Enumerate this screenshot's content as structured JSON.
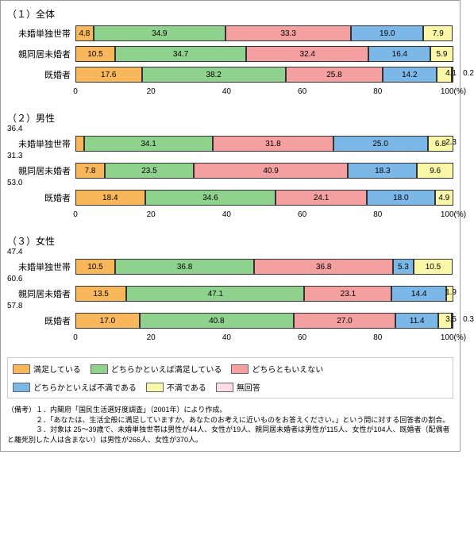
{
  "colors": {
    "c0": "#f9b75b",
    "c1": "#8ed28e",
    "c2": "#f4a0a0",
    "c3": "#7bb8e8",
    "c4": "#fbf7a8",
    "c5": "#fcdde8",
    "text": "#333333",
    "border": "#333333"
  },
  "legend": [
    {
      "label": "満足している",
      "c": "c0"
    },
    {
      "label": "どちらかといえば満足している",
      "c": "c1"
    },
    {
      "label": "どちらともいえない",
      "c": "c2"
    },
    {
      "label": "どちらかといえば不満である",
      "c": "c3"
    },
    {
      "label": "不満である",
      "c": "c4"
    },
    {
      "label": "無回答",
      "c": "c5"
    }
  ],
  "axis": {
    "ticks": [
      0,
      20,
      40,
      60,
      80,
      100
    ],
    "unit": "100(%)"
  },
  "panels": [
    {
      "title": "（１）全体",
      "rows": [
        {
          "label": "未婚単独世帯",
          "v": [
            4.8,
            34.9,
            33.3,
            19.0,
            7.9,
            0
          ]
        },
        {
          "label": "親同居未婚者",
          "v": [
            10.5,
            34.7,
            32.4,
            16.4,
            5.9,
            0
          ]
        },
        {
          "label": "既婚者",
          "v": [
            17.6,
            38.2,
            25.8,
            14.2,
            4.1,
            0.2
          ],
          "ext": [
            {
              "i": 4,
              "t": "4.1"
            },
            {
              "i": 5,
              "t": "0.2"
            }
          ]
        }
      ]
    },
    {
      "title": "（２）男性",
      "rows": [
        {
          "label": "未婚単独世帯",
          "v": [
            2.3,
            34.1,
            31.8,
            25.0,
            6.8,
            0
          ],
          "top": {
            "t": "36.4",
            "at": 36.4
          },
          "ext": [
            {
              "i": 0,
              "t": "2.3"
            }
          ]
        },
        {
          "label": "親同居未婚者",
          "v": [
            7.8,
            23.5,
            40.9,
            18.3,
            9.6,
            0
          ],
          "top": {
            "t": "31.3",
            "at": 31.3
          }
        },
        {
          "label": "既婚者",
          "v": [
            18.4,
            34.6,
            24.1,
            18.0,
            4.9,
            0
          ],
          "top": {
            "t": "53.0",
            "at": 53.0
          }
        }
      ]
    },
    {
      "title": "（３）女性",
      "rows": [
        {
          "label": "未婚単独世帯",
          "v": [
            10.5,
            36.8,
            36.8,
            5.3,
            10.5,
            0
          ],
          "top": {
            "t": "47.4",
            "at": 47.4
          }
        },
        {
          "label": "親同居未婚者",
          "v": [
            13.5,
            47.1,
            23.1,
            14.4,
            1.9,
            0
          ],
          "top": {
            "t": "60.6",
            "at": 60.6
          },
          "ext": [
            {
              "i": 4,
              "t": "1.9"
            }
          ]
        },
        {
          "label": "既婚者",
          "v": [
            17.0,
            40.8,
            27.0,
            11.4,
            3.5,
            0.3
          ],
          "top": {
            "t": "57.8",
            "at": 57.8
          },
          "ext": [
            {
              "i": 4,
              "t": "3.5"
            },
            {
              "i": 5,
              "t": "0.3"
            }
          ]
        }
      ]
    }
  ],
  "notes": [
    "（備考）１．内閣府「国民生活選好度調査」（2001年）により作成。",
    "　　　　２．「あなたは、生活全般に満足していますか。あなたのお考えに近いものをお答えください。」という問に対する回答者の割合。",
    "　　　　３．対象は 25～39歳で、未婚単独世帯は男性が44人、女性が19人、親同居未婚者は男性が115人、女性が104人、既婚者（配偶者と離死別した人は含まない）は男性が266人、女性が370人。"
  ]
}
